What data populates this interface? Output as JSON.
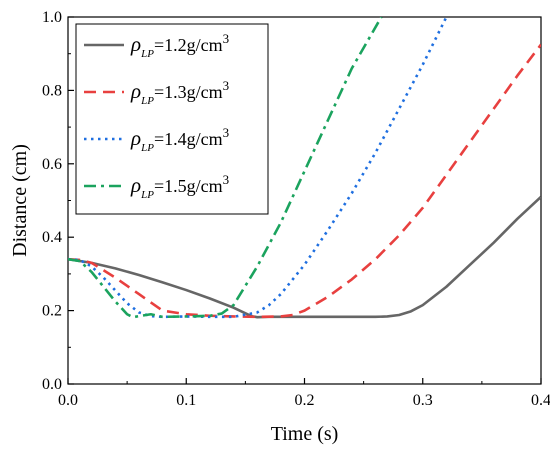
{
  "chart_data": {
    "type": "line",
    "xlabel": "Time (s)",
    "ylabel": "Distance (cm)",
    "xlim": [
      0.0,
      0.4
    ],
    "ylim": [
      0.0,
      1.0
    ],
    "xticks": [
      "0.0",
      "0.1",
      "0.2",
      "0.3",
      "0.4"
    ],
    "yticks": [
      "0.0",
      "0.2",
      "0.4",
      "0.6",
      "0.8",
      "1.0"
    ],
    "grid": false,
    "legend_position": "top-left",
    "series": [
      {
        "name_symbol": "ρ",
        "name_sub": "LP",
        "name_value": "=1.2g/cm",
        "name_sup": "3",
        "color": "#666666",
        "style": "solid",
        "x": [
          0.0,
          0.02,
          0.04,
          0.06,
          0.08,
          0.1,
          0.12,
          0.14,
          0.155,
          0.16,
          0.17,
          0.18,
          0.2,
          0.22,
          0.24,
          0.26,
          0.27,
          0.28,
          0.29,
          0.3,
          0.32,
          0.34,
          0.36,
          0.38,
          0.4
        ],
        "y": [
          0.34,
          0.33,
          0.315,
          0.297,
          0.277,
          0.256,
          0.233,
          0.208,
          0.185,
          0.182,
          0.183,
          0.183,
          0.183,
          0.183,
          0.183,
          0.183,
          0.184,
          0.188,
          0.198,
          0.215,
          0.265,
          0.325,
          0.385,
          0.45,
          0.51
        ]
      },
      {
        "name_symbol": "ρ",
        "name_sub": "LP",
        "name_value": "=1.3g/cm",
        "name_sup": "3",
        "color": "#e8403f",
        "style": "dash",
        "x": [
          0.0,
          0.01,
          0.02,
          0.04,
          0.06,
          0.08,
          0.1,
          0.12,
          0.14,
          0.16,
          0.18,
          0.19,
          0.2,
          0.22,
          0.24,
          0.26,
          0.28,
          0.3,
          0.32,
          0.34,
          0.36,
          0.38,
          0.4
        ],
        "y": [
          0.34,
          0.338,
          0.33,
          0.29,
          0.245,
          0.2,
          0.19,
          0.186,
          0.184,
          0.183,
          0.184,
          0.188,
          0.2,
          0.238,
          0.285,
          0.34,
          0.405,
          0.48,
          0.57,
          0.66,
          0.75,
          0.84,
          0.925
        ]
      },
      {
        "name_symbol": "ρ",
        "name_sub": "LP",
        "name_value": "=1.4g/cm",
        "name_sup": "3",
        "color": "#1f6fe0",
        "style": "dot",
        "x": [
          0.0,
          0.01,
          0.02,
          0.03,
          0.04,
          0.05,
          0.06,
          0.07,
          0.08,
          0.1,
          0.12,
          0.14,
          0.16,
          0.17,
          0.18,
          0.2,
          0.22,
          0.24,
          0.26,
          0.28,
          0.3,
          0.32
        ],
        "y": [
          0.34,
          0.338,
          0.32,
          0.29,
          0.255,
          0.22,
          0.195,
          0.185,
          0.183,
          0.184,
          0.183,
          0.183,
          0.195,
          0.215,
          0.245,
          0.325,
          0.42,
          0.52,
          0.63,
          0.75,
          0.87,
          1.0
        ]
      },
      {
        "name_symbol": "ρ",
        "name_sub": "LP",
        "name_value": "=1.5g/cm",
        "name_sup": "3",
        "color": "#1ba35e",
        "style": "dashdot",
        "x": [
          0.0,
          0.01,
          0.02,
          0.03,
          0.04,
          0.05,
          0.055,
          0.06,
          0.07,
          0.08,
          0.1,
          0.12,
          0.13,
          0.14,
          0.16,
          0.18,
          0.2,
          0.22,
          0.24,
          0.265
        ],
        "y": [
          0.34,
          0.335,
          0.305,
          0.265,
          0.225,
          0.19,
          0.182,
          0.185,
          0.19,
          0.183,
          0.184,
          0.186,
          0.192,
          0.215,
          0.32,
          0.44,
          0.58,
          0.72,
          0.86,
          1.0
        ]
      }
    ]
  }
}
